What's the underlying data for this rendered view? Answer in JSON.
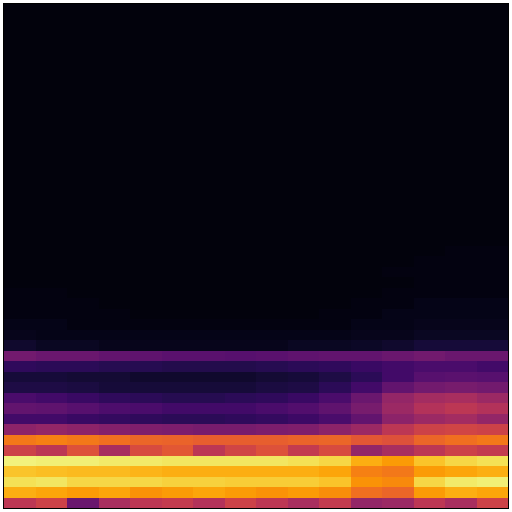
{
  "chart_data": {
    "type": "heatmap",
    "tick_labels": false,
    "zlim": [
      0,
      1
    ],
    "cells": [
      [
        0.02,
        0.02,
        0.02,
        0.02,
        0.02,
        0.02,
        0.02,
        0.02,
        0.02,
        0.02,
        0.02,
        0.02,
        0.02,
        0.02,
        0.02,
        0.02
      ],
      [
        0.02,
        0.02,
        0.02,
        0.02,
        0.02,
        0.02,
        0.02,
        0.02,
        0.02,
        0.02,
        0.02,
        0.02,
        0.02,
        0.02,
        0.02,
        0.02
      ],
      [
        0.02,
        0.02,
        0.02,
        0.02,
        0.02,
        0.02,
        0.02,
        0.02,
        0.02,
        0.02,
        0.02,
        0.02,
        0.02,
        0.02,
        0.02,
        0.02
      ],
      [
        0.02,
        0.02,
        0.02,
        0.02,
        0.02,
        0.02,
        0.02,
        0.02,
        0.02,
        0.02,
        0.02,
        0.02,
        0.02,
        0.02,
        0.02,
        0.02
      ],
      [
        0.02,
        0.02,
        0.02,
        0.02,
        0.02,
        0.02,
        0.02,
        0.02,
        0.02,
        0.02,
        0.02,
        0.02,
        0.02,
        0.02,
        0.02,
        0.02
      ],
      [
        0.02,
        0.02,
        0.02,
        0.02,
        0.02,
        0.02,
        0.02,
        0.02,
        0.02,
        0.02,
        0.02,
        0.02,
        0.02,
        0.02,
        0.02,
        0.02
      ],
      [
        0.02,
        0.02,
        0.02,
        0.02,
        0.02,
        0.02,
        0.02,
        0.02,
        0.02,
        0.02,
        0.02,
        0.02,
        0.02,
        0.02,
        0.02,
        0.02
      ],
      [
        0.02,
        0.02,
        0.02,
        0.02,
        0.02,
        0.02,
        0.02,
        0.02,
        0.02,
        0.02,
        0.02,
        0.02,
        0.02,
        0.02,
        0.02,
        0.02
      ],
      [
        0.02,
        0.02,
        0.02,
        0.02,
        0.02,
        0.02,
        0.02,
        0.02,
        0.02,
        0.02,
        0.02,
        0.02,
        0.02,
        0.02,
        0.02,
        0.02
      ],
      [
        0.02,
        0.02,
        0.02,
        0.02,
        0.02,
        0.02,
        0.02,
        0.02,
        0.02,
        0.02,
        0.02,
        0.02,
        0.02,
        0.02,
        0.02,
        0.02
      ],
      [
        0.02,
        0.02,
        0.02,
        0.02,
        0.02,
        0.02,
        0.02,
        0.02,
        0.02,
        0.02,
        0.02,
        0.02,
        0.02,
        0.02,
        0.02,
        0.02
      ],
      [
        0.02,
        0.02,
        0.02,
        0.02,
        0.02,
        0.02,
        0.02,
        0.02,
        0.02,
        0.02,
        0.02,
        0.02,
        0.02,
        0.02,
        0.02,
        0.02
      ],
      [
        0.02,
        0.02,
        0.02,
        0.02,
        0.02,
        0.02,
        0.02,
        0.02,
        0.02,
        0.02,
        0.02,
        0.02,
        0.02,
        0.02,
        0.02,
        0.02
      ],
      [
        0.02,
        0.02,
        0.02,
        0.02,
        0.02,
        0.02,
        0.02,
        0.02,
        0.02,
        0.02,
        0.02,
        0.02,
        0.02,
        0.02,
        0.02,
        0.02
      ],
      [
        0.02,
        0.02,
        0.02,
        0.02,
        0.02,
        0.02,
        0.02,
        0.02,
        0.02,
        0.02,
        0.02,
        0.02,
        0.02,
        0.02,
        0.02,
        0.02
      ],
      [
        0.02,
        0.02,
        0.02,
        0.02,
        0.02,
        0.02,
        0.02,
        0.02,
        0.02,
        0.02,
        0.02,
        0.02,
        0.02,
        0.02,
        0.02,
        0.02
      ],
      [
        0.02,
        0.02,
        0.02,
        0.02,
        0.02,
        0.02,
        0.02,
        0.02,
        0.02,
        0.02,
        0.02,
        0.02,
        0.02,
        0.02,
        0.02,
        0.02
      ],
      [
        0.02,
        0.02,
        0.02,
        0.02,
        0.02,
        0.02,
        0.02,
        0.02,
        0.02,
        0.02,
        0.02,
        0.02,
        0.02,
        0.02,
        0.02,
        0.02
      ],
      [
        0.02,
        0.02,
        0.02,
        0.02,
        0.02,
        0.02,
        0.02,
        0.02,
        0.02,
        0.02,
        0.02,
        0.02,
        0.02,
        0.02,
        0.02,
        0.02
      ],
      [
        0.02,
        0.02,
        0.02,
        0.02,
        0.02,
        0.02,
        0.02,
        0.02,
        0.02,
        0.02,
        0.02,
        0.02,
        0.02,
        0.02,
        0.02,
        0.02
      ],
      [
        0.02,
        0.02,
        0.02,
        0.02,
        0.02,
        0.02,
        0.02,
        0.02,
        0.02,
        0.02,
        0.02,
        0.02,
        0.02,
        0.02,
        0.02,
        0.02
      ],
      [
        0.02,
        0.02,
        0.02,
        0.02,
        0.02,
        0.02,
        0.02,
        0.02,
        0.02,
        0.02,
        0.02,
        0.02,
        0.02,
        0.02,
        0.02,
        0.02
      ],
      [
        0.02,
        0.02,
        0.02,
        0.02,
        0.02,
        0.02,
        0.02,
        0.02,
        0.02,
        0.02,
        0.02,
        0.02,
        0.02,
        0.02,
        0.02,
        0.02
      ],
      [
        0.02,
        0.02,
        0.02,
        0.02,
        0.02,
        0.02,
        0.02,
        0.02,
        0.02,
        0.02,
        0.02,
        0.02,
        0.02,
        0.02,
        0.03,
        0.03
      ],
      [
        0.02,
        0.02,
        0.02,
        0.02,
        0.02,
        0.02,
        0.02,
        0.02,
        0.02,
        0.02,
        0.02,
        0.02,
        0.02,
        0.03,
        0.03,
        0.03
      ],
      [
        0.02,
        0.02,
        0.02,
        0.02,
        0.02,
        0.02,
        0.02,
        0.02,
        0.02,
        0.02,
        0.02,
        0.02,
        0.03,
        0.03,
        0.03,
        0.03
      ],
      [
        0.02,
        0.02,
        0.02,
        0.02,
        0.02,
        0.02,
        0.02,
        0.02,
        0.02,
        0.02,
        0.02,
        0.02,
        0.02,
        0.03,
        0.03,
        0.03
      ],
      [
        0.03,
        0.03,
        0.02,
        0.02,
        0.02,
        0.02,
        0.02,
        0.02,
        0.02,
        0.02,
        0.02,
        0.02,
        0.03,
        0.03,
        0.03,
        0.03
      ],
      [
        0.03,
        0.03,
        0.03,
        0.02,
        0.02,
        0.02,
        0.02,
        0.02,
        0.02,
        0.02,
        0.02,
        0.03,
        0.03,
        0.04,
        0.04,
        0.04
      ],
      [
        0.03,
        0.03,
        0.03,
        0.03,
        0.02,
        0.02,
        0.02,
        0.02,
        0.02,
        0.02,
        0.03,
        0.03,
        0.04,
        0.04,
        0.04,
        0.04
      ],
      [
        0.04,
        0.04,
        0.03,
        0.03,
        0.03,
        0.03,
        0.03,
        0.03,
        0.03,
        0.03,
        0.03,
        0.04,
        0.04,
        0.05,
        0.05,
        0.05
      ],
      [
        0.05,
        0.04,
        0.04,
        0.04,
        0.04,
        0.04,
        0.04,
        0.04,
        0.04,
        0.04,
        0.04,
        0.05,
        0.05,
        0.06,
        0.06,
        0.06
      ],
      [
        0.08,
        0.06,
        0.06,
        0.05,
        0.05,
        0.05,
        0.05,
        0.05,
        0.05,
        0.06,
        0.06,
        0.07,
        0.08,
        0.1,
        0.1,
        0.1
      ],
      [
        0.32,
        0.3,
        0.3,
        0.28,
        0.27,
        0.26,
        0.26,
        0.25,
        0.26,
        0.27,
        0.28,
        0.28,
        0.3,
        0.32,
        0.3,
        0.3
      ],
      [
        0.16,
        0.15,
        0.15,
        0.14,
        0.14,
        0.13,
        0.13,
        0.13,
        0.14,
        0.15,
        0.16,
        0.18,
        0.2,
        0.22,
        0.22,
        0.2
      ],
      [
        0.1,
        0.1,
        0.09,
        0.09,
        0.08,
        0.08,
        0.08,
        0.08,
        0.09,
        0.1,
        0.12,
        0.15,
        0.2,
        0.25,
        0.26,
        0.25
      ],
      [
        0.12,
        0.12,
        0.11,
        0.1,
        0.1,
        0.1,
        0.1,
        0.1,
        0.11,
        0.12,
        0.15,
        0.2,
        0.28,
        0.32,
        0.33,
        0.32
      ],
      [
        0.22,
        0.2,
        0.18,
        0.16,
        0.15,
        0.14,
        0.14,
        0.15,
        0.16,
        0.18,
        0.22,
        0.3,
        0.4,
        0.44,
        0.45,
        0.42
      ],
      [
        0.28,
        0.27,
        0.25,
        0.23,
        0.22,
        0.2,
        0.2,
        0.2,
        0.22,
        0.24,
        0.27,
        0.33,
        0.42,
        0.48,
        0.5,
        0.48
      ],
      [
        0.2,
        0.2,
        0.18,
        0.17,
        0.16,
        0.15,
        0.15,
        0.16,
        0.17,
        0.19,
        0.22,
        0.28,
        0.38,
        0.42,
        0.44,
        0.4
      ],
      [
        0.38,
        0.4,
        0.38,
        0.36,
        0.35,
        0.34,
        0.33,
        0.33,
        0.34,
        0.35,
        0.38,
        0.42,
        0.5,
        0.55,
        0.56,
        0.55
      ],
      [
        0.7,
        0.72,
        0.7,
        0.68,
        0.66,
        0.65,
        0.64,
        0.64,
        0.64,
        0.65,
        0.66,
        0.62,
        0.6,
        0.66,
        0.68,
        0.7
      ],
      [
        0.55,
        0.5,
        0.6,
        0.45,
        0.58,
        0.62,
        0.5,
        0.56,
        0.6,
        0.52,
        0.58,
        0.4,
        0.45,
        0.5,
        0.55,
        0.52
      ],
      [
        0.96,
        0.95,
        0.95,
        0.94,
        0.94,
        0.93,
        0.93,
        0.93,
        0.93,
        0.92,
        0.9,
        0.82,
        0.78,
        0.86,
        0.9,
        0.92
      ],
      [
        0.86,
        0.85,
        0.84,
        0.84,
        0.83,
        0.82,
        0.82,
        0.82,
        0.82,
        0.82,
        0.8,
        0.72,
        0.7,
        0.78,
        0.8,
        0.82
      ],
      [
        0.92,
        0.93,
        0.9,
        0.9,
        0.9,
        0.89,
        0.89,
        0.88,
        0.88,
        0.88,
        0.86,
        0.76,
        0.74,
        0.9,
        0.94,
        0.95
      ],
      [
        0.82,
        0.8,
        0.78,
        0.8,
        0.76,
        0.78,
        0.8,
        0.78,
        0.76,
        0.78,
        0.75,
        0.68,
        0.66,
        0.78,
        0.82,
        0.8
      ],
      [
        0.5,
        0.55,
        0.3,
        0.45,
        0.5,
        0.52,
        0.48,
        0.55,
        0.5,
        0.45,
        0.52,
        0.4,
        0.42,
        0.5,
        0.45,
        0.55
      ]
    ]
  }
}
